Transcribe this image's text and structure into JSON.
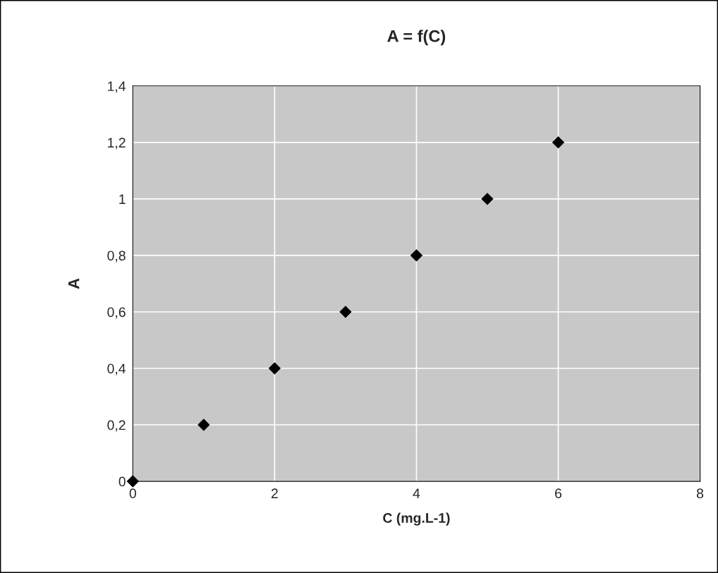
{
  "chart_data": {
    "type": "scatter",
    "title": "A = f(C)",
    "xlabel": "C (mg.L-1)",
    "ylabel": "A",
    "x": [
      0,
      1,
      2,
      3,
      4,
      5,
      6
    ],
    "series": [
      {
        "color": "#000000",
        "values": [
          0,
          0.2,
          0.4,
          0.6,
          0.8,
          1.0,
          1.2
        ]
      }
    ],
    "xlim": [
      0,
      8
    ],
    "xticks": [
      0,
      2,
      4,
      6,
      8
    ],
    "ylim": [
      0,
      1.4
    ],
    "yticks": [
      0,
      {
        "value": 0.2,
        "label": "0,2"
      },
      {
        "value": 0.4,
        "label": "0,4"
      },
      {
        "value": 0.6,
        "label": "0,6"
      },
      {
        "value": 0.8,
        "label": "0,8"
      },
      1,
      {
        "value": 1.2,
        "label": "1,2"
      },
      {
        "value": 1.4,
        "label": "1,4"
      }
    ],
    "grid": true,
    "marker": "diamond",
    "legend": false
  }
}
